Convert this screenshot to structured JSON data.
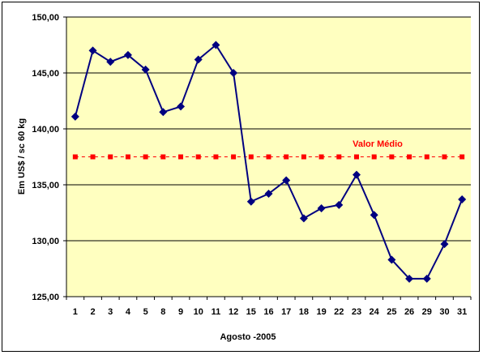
{
  "chart_data": {
    "type": "line",
    "title": "",
    "xlabel": "Agosto -2005",
    "ylabel": "Em US$ / sc 60 kg",
    "categories": [
      "1",
      "2",
      "3",
      "4",
      "5",
      "8",
      "9",
      "10",
      "11",
      "12",
      "15",
      "16",
      "17",
      "18",
      "19",
      "22",
      "23",
      "24",
      "25",
      "26",
      "29",
      "30",
      "31"
    ],
    "ylim": [
      125,
      150
    ],
    "yticks": [
      "125,00",
      "130,00",
      "135,00",
      "140,00",
      "145,00",
      "150,00"
    ],
    "grid": true,
    "series": [
      {
        "values": [
          141.1,
          147.0,
          146.0,
          146.6,
          145.3,
          141.5,
          142.0,
          146.2,
          147.5,
          145.0,
          133.5,
          134.2,
          135.4,
          132.0,
          132.9,
          133.2,
          135.9,
          132.3,
          128.3,
          126.6,
          126.6,
          129.7,
          133.7
        ],
        "color": "#000080",
        "marker": "diamond"
      },
      {
        "name": "Valor Médio",
        "values": [
          137.5,
          137.5,
          137.5,
          137.5,
          137.5,
          137.5,
          137.5,
          137.5,
          137.5,
          137.5,
          137.5,
          137.5,
          137.5,
          137.5,
          137.5,
          137.5,
          137.5,
          137.5,
          137.5,
          137.5,
          137.5,
          137.5,
          137.5
        ],
        "color": "#ff0000",
        "marker": "square"
      }
    ],
    "plot_background": "#ffffc0",
    "annotation": {
      "text": "Valor Médio",
      "color": "#ff0000"
    }
  }
}
